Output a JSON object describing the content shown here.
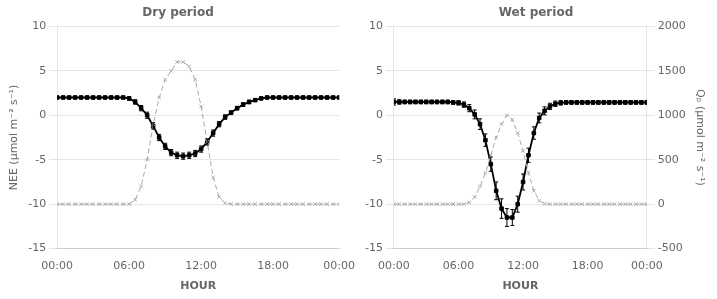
{
  "chart_data": [
    {
      "type": "line",
      "title": "Dry period",
      "x": [
        0,
        1,
        2,
        3,
        4,
        5,
        6,
        7,
        8,
        9,
        10,
        11,
        12,
        13,
        14,
        15,
        16,
        17,
        18,
        19,
        20,
        21,
        22,
        23,
        24,
        25,
        26,
        27,
        28,
        29,
        30,
        31,
        32,
        33,
        34,
        35,
        36,
        37,
        38,
        39,
        40,
        41,
        42,
        43,
        44,
        45,
        46,
        47
      ],
      "xlim": [
        0,
        47
      ],
      "xticks": [
        {
          "value": 0,
          "label": "00:00"
        },
        {
          "value": 12,
          "label": "06:00"
        },
        {
          "value": 24,
          "label": "12:00"
        },
        {
          "value": 36,
          "label": "18:00"
        },
        {
          "value": 47,
          "label": "00:00"
        }
      ],
      "xlabel": "HOUR",
      "ylabel": "NEE (μmol m⁻² s⁻¹)",
      "ylim": [
        -15,
        10
      ],
      "yticks": [
        -15,
        -10,
        -5,
        0,
        5,
        10
      ],
      "y2lim": [
        -500,
        2000
      ],
      "grid": "y",
      "series": [
        {
          "values": [
            0,
            0,
            0,
            0,
            0,
            0,
            0,
            0,
            0,
            0,
            0,
            0,
            0,
            50,
            200,
            500,
            900,
            1200,
            1400,
            1500,
            1600,
            1600,
            1550,
            1400,
            1100,
            700,
            300,
            80,
            10,
            0,
            0,
            0,
            0,
            0,
            0,
            0,
            0,
            0,
            0,
            0,
            0,
            0,
            0,
            0,
            0,
            0,
            0,
            0
          ],
          "color": "#aaaaaa",
          "line_style": "dashed",
          "marker": "x",
          "axis": "y2"
        },
        {
          "values": [
            2.0,
            2.0,
            2.0,
            2.0,
            2.0,
            2.0,
            2.0,
            2.0,
            2.0,
            2.0,
            2.0,
            2.0,
            1.9,
            1.5,
            0.8,
            0.0,
            -1.2,
            -2.5,
            -3.5,
            -4.2,
            -4.5,
            -4.6,
            -4.5,
            -4.3,
            -3.8,
            -3.0,
            -2.0,
            -1.0,
            -0.2,
            0.3,
            0.8,
            1.2,
            1.5,
            1.7,
            1.9,
            2.0,
            2.0,
            2.0,
            2.0,
            2.0,
            2.0,
            2.0,
            2.0,
            2.0,
            2.0,
            2.0,
            2.0,
            2.0
          ],
          "errors": [
            0.15,
            0.15,
            0.15,
            0.15,
            0.15,
            0.15,
            0.15,
            0.15,
            0.15,
            0.15,
            0.15,
            0.15,
            0.2,
            0.25,
            0.3,
            0.35,
            0.35,
            0.35,
            0.35,
            0.35,
            0.35,
            0.35,
            0.35,
            0.35,
            0.35,
            0.35,
            0.35,
            0.3,
            0.25,
            0.2,
            0.2,
            0.2,
            0.2,
            0.15,
            0.15,
            0.15,
            0.15,
            0.15,
            0.15,
            0.15,
            0.15,
            0.15,
            0.15,
            0.15,
            0.15,
            0.15,
            0.15,
            0.15
          ],
          "color": "#000000",
          "line_style": "solid",
          "marker": "square"
        }
      ]
    },
    {
      "type": "line",
      "title": "Wet period",
      "x": [
        0,
        1,
        2,
        3,
        4,
        5,
        6,
        7,
        8,
        9,
        10,
        11,
        12,
        13,
        14,
        15,
        16,
        17,
        18,
        19,
        20,
        21,
        22,
        23,
        24,
        25,
        26,
        27,
        28,
        29,
        30,
        31,
        32,
        33,
        34,
        35,
        36,
        37,
        38,
        39,
        40,
        41,
        42,
        43,
        44,
        45,
        46,
        47
      ],
      "xlim": [
        0,
        47
      ],
      "xticks": [
        {
          "value": 0,
          "label": "00:00"
        },
        {
          "value": 12,
          "label": "06:00"
        },
        {
          "value": 24,
          "label": "12:00"
        },
        {
          "value": 36,
          "label": "18:00"
        },
        {
          "value": 47,
          "label": "00:00"
        }
      ],
      "xlabel": "HOUR",
      "ylim": [
        -15,
        10
      ],
      "yticks": [
        -15,
        -10,
        -5,
        0,
        5,
        10
      ],
      "y2label": "Qₚ (μmol m⁻² s⁻¹)",
      "y2lim": [
        -500,
        2000
      ],
      "y2ticks": [
        -500,
        0,
        500,
        1000,
        1500,
        2000
      ],
      "grid": "y",
      "series": [
        {
          "values": [
            0,
            0,
            0,
            0,
            0,
            0,
            0,
            0,
            0,
            0,
            0,
            0,
            0,
            0,
            20,
            80,
            200,
            350,
            550,
            750,
            900,
            1000,
            950,
            800,
            600,
            350,
            150,
            40,
            5,
            0,
            0,
            0,
            0,
            0,
            0,
            0,
            0,
            0,
            0,
            0,
            0,
            0,
            0,
            0,
            0,
            0,
            0,
            0
          ],
          "color": "#aaaaaa",
          "line_style": "dashed",
          "marker": "x",
          "axis": "y2"
        },
        {
          "values": [
            1.5,
            1.5,
            1.5,
            1.5,
            1.5,
            1.5,
            1.5,
            1.5,
            1.5,
            1.5,
            1.5,
            1.45,
            1.4,
            1.2,
            0.8,
            0.1,
            -1.0,
            -2.8,
            -5.5,
            -8.5,
            -10.5,
            -11.5,
            -11.5,
            -10.0,
            -7.5,
            -4.5,
            -2.0,
            -0.3,
            0.5,
            1.0,
            1.3,
            1.4,
            1.45,
            1.45,
            1.45,
            1.45,
            1.45,
            1.45,
            1.45,
            1.45,
            1.45,
            1.45,
            1.45,
            1.45,
            1.45,
            1.45,
            1.45,
            1.45
          ],
          "errors": [
            0.35,
            0.25,
            0.2,
            0.2,
            0.2,
            0.2,
            0.2,
            0.2,
            0.2,
            0.2,
            0.2,
            0.2,
            0.25,
            0.3,
            0.4,
            0.5,
            0.6,
            0.7,
            0.8,
            1.0,
            1.1,
            1.0,
            0.9,
            0.9,
            0.9,
            0.8,
            0.7,
            0.55,
            0.45,
            0.35,
            0.3,
            0.25,
            0.2,
            0.2,
            0.2,
            0.2,
            0.2,
            0.2,
            0.2,
            0.2,
            0.2,
            0.2,
            0.2,
            0.2,
            0.2,
            0.2,
            0.2,
            0.2
          ],
          "color": "#000000",
          "line_style": "solid",
          "marker": "square"
        }
      ]
    }
  ]
}
